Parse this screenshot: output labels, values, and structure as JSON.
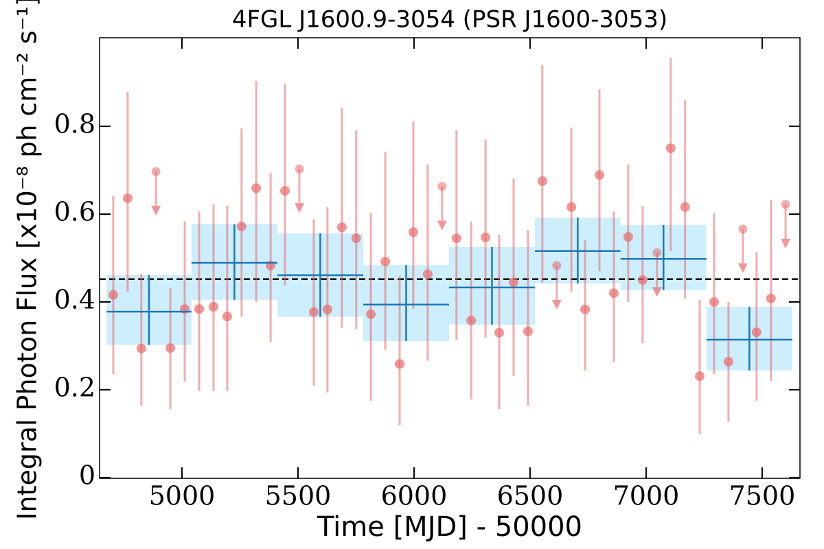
{
  "chart_data": {
    "type": "lightcurve",
    "title": "4FGL J1600.9-3054 (PSR J1600-3053)",
    "xlabel": "Time [MJD] - 50000",
    "ylabel": "Integral Photon Flux [x10⁻⁸ ph cm⁻² s⁻¹]",
    "xlim": [
      4645,
      7663
    ],
    "ylim": [
      0,
      1.0
    ],
    "xticks": [
      5000,
      5500,
      6000,
      6500,
      7000,
      7500
    ],
    "yticks": [
      0,
      0.2,
      0.4,
      0.6,
      0.8
    ],
    "mean": 0.452,
    "detections": {
      "color": "#e8696b",
      "x": [
        4704,
        4766,
        4825,
        4950,
        5012,
        5074,
        5136,
        5195,
        5257,
        5320,
        5382,
        5444,
        5568,
        5627,
        5689,
        5751,
        5814,
        5876,
        5938,
        5997,
        6059,
        6183,
        6246,
        6308,
        6367,
        6429,
        6491,
        6553,
        6678,
        6737,
        6799,
        6861,
        6923,
        6985,
        7106,
        7168,
        7231,
        7293,
        7355,
        7476,
        7538
      ],
      "values": [
        0.416,
        0.636,
        0.294,
        0.295,
        0.384,
        0.384,
        0.389,
        0.367,
        0.572,
        0.659,
        0.483,
        0.653,
        0.377,
        0.383,
        0.57,
        0.545,
        0.372,
        0.492,
        0.259,
        0.559,
        0.463,
        0.545,
        0.358,
        0.547,
        0.33,
        0.445,
        0.333,
        0.675,
        0.616,
        0.383,
        0.689,
        0.42,
        0.548,
        0.45,
        0.75,
        0.616,
        0.231,
        0.4,
        0.264,
        0.331,
        0.408
      ],
      "lower": [
        0.236,
        0.423,
        0.163,
        0.156,
        0.219,
        0.197,
        0.197,
        0.197,
        0.366,
        0.4,
        0.309,
        0.438,
        0.209,
        0.194,
        0.341,
        0.338,
        0.175,
        0.291,
        0.119,
        0.384,
        0.266,
        0.313,
        0.178,
        0.319,
        0.156,
        0.231,
        0.163,
        0.444,
        0.423,
        0.244,
        0.47,
        0.263,
        0.4,
        0.306,
        0.516,
        0.408,
        0.1,
        0.236,
        0.127,
        0.175,
        0.22
      ],
      "upper": [
        0.642,
        0.878,
        0.464,
        0.431,
        0.584,
        0.606,
        0.623,
        0.619,
        0.795,
        0.903,
        0.694,
        0.897,
        0.588,
        0.616,
        0.842,
        0.791,
        0.603,
        0.742,
        0.459,
        0.811,
        0.713,
        0.791,
        0.583,
        0.77,
        0.553,
        0.681,
        0.564,
        0.939,
        0.797,
        0.541,
        0.884,
        0.606,
        0.713,
        0.619,
        0.956,
        0.859,
        0.405,
        0.603,
        0.4,
        0.514,
        0.633
      ]
    },
    "upper_limits": {
      "color": "#e8696b",
      "x": [
        4888,
        5506,
        6121,
        6615,
        7047,
        7417,
        7601
      ],
      "values": [
        0.697,
        0.703,
        0.663,
        0.483,
        0.512,
        0.566,
        0.622
      ]
    },
    "bins": {
      "color": "#1f77b4",
      "band_color": "#cdeefc",
      "edges": [
        4675,
        5041,
        5411,
        5781,
        6151,
        6521,
        6890,
        7260,
        7630
      ],
      "values": [
        0.378,
        0.489,
        0.461,
        0.394,
        0.433,
        0.516,
        0.498,
        0.314
      ],
      "lower": [
        0.302,
        0.405,
        0.366,
        0.311,
        0.348,
        0.442,
        0.427,
        0.244
      ],
      "upper": [
        0.461,
        0.577,
        0.556,
        0.484,
        0.525,
        0.592,
        0.575,
        0.389
      ]
    }
  }
}
